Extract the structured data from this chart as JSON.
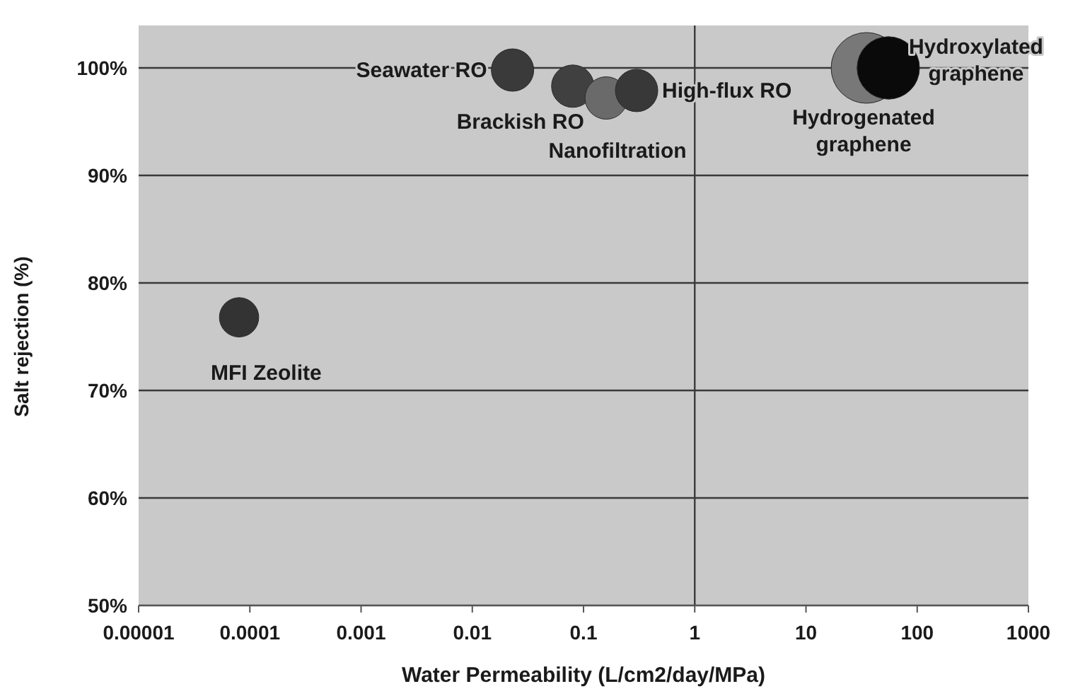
{
  "chart_data": {
    "type": "bubble",
    "xlabel": "Water Permeability (L/cm2/day/MPa)",
    "ylabel": "Salt rejection (%)",
    "log": "x",
    "grid": "y",
    "marker": "circle",
    "xlim": [
      1e-05,
      1000
    ],
    "xticks": [
      {
        "value": 1e-05,
        "label": "0.00001"
      },
      {
        "value": 0.0001,
        "label": "0.0001"
      },
      {
        "value": 0.001,
        "label": "0.001"
      },
      0.01,
      0.1,
      1,
      10,
      100,
      1000
    ],
    "ylim": [
      50,
      100
    ],
    "yticks": [
      {
        "value": 50,
        "label": "50%"
      },
      {
        "value": 60,
        "label": "60%"
      },
      {
        "value": 70,
        "label": "70%"
      },
      {
        "value": 80,
        "label": "80%"
      },
      {
        "value": 90,
        "label": "90%"
      },
      {
        "value": 100,
        "label": "100%"
      }
    ],
    "ref_lines": [
      {
        "axis": "x",
        "value": 1,
        "color": "#3a3a3a"
      }
    ],
    "series": [
      {
        "name": "MFI Zeolite",
        "color": "#333333",
        "x": [
          8e-05
        ],
        "values": [
          76.8
        ],
        "sizes": [
          0.31
        ]
      },
      {
        "name": "Seawater RO",
        "color": "#3a3a3a",
        "x": [
          0.023
        ],
        "values": [
          99.8
        ],
        "sizes": [
          0.36
        ]
      },
      {
        "name": "Brackish RO",
        "color": "#404040",
        "x": [
          0.08
        ],
        "values": [
          98.3
        ],
        "sizes": [
          0.36
        ]
      },
      {
        "name": "Nanofiltration",
        "color": "#6a6a6a",
        "x": [
          0.16
        ],
        "values": [
          97.2
        ],
        "sizes": [
          0.36
        ]
      },
      {
        "name": "High-flux RO",
        "color": "#383838",
        "x": [
          0.3
        ],
        "values": [
          97.9
        ],
        "sizes": [
          0.36
        ]
      },
      {
        "name": "Hydrogenated graphene",
        "color": "#787878",
        "x": [
          35
        ],
        "values": [
          100
        ],
        "sizes": [
          1
        ]
      },
      {
        "name": "Hydroxylated graphene",
        "color": "#0a0a0a",
        "x": [
          55
        ],
        "values": [
          100
        ],
        "sizes": [
          0.78
        ]
      }
    ]
  }
}
